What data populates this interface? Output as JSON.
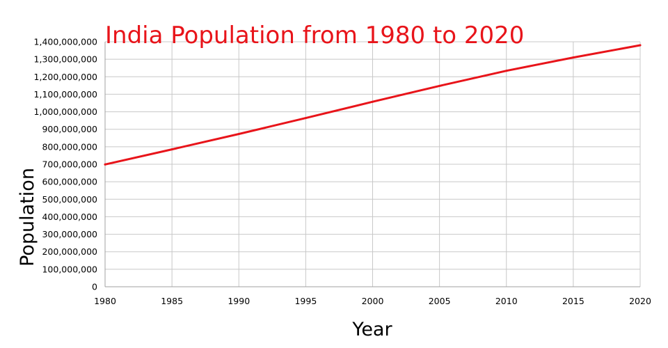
{
  "chart_data": {
    "type": "line",
    "title": "India Population from 1980 to 2020",
    "xlabel": "Year",
    "ylabel": "Population",
    "xlim": [
      1980,
      2020
    ],
    "ylim": [
      0,
      1400000000
    ],
    "x_ticks": [
      "1980",
      "1985",
      "1990",
      "1995",
      "2000",
      "2005",
      "2010",
      "2015",
      "2020"
    ],
    "y_ticks": [
      "0",
      "100,000,000",
      "200,000,000",
      "300,000,000",
      "400,000,000",
      "500,000,000",
      "600,000,000",
      "700,000,000",
      "800,000,000",
      "900,000,000",
      "1,000,000,000",
      "1,100,000,000",
      "1,200,000,000",
      "1,300,000,000",
      "1,400,000,000"
    ],
    "grid": true,
    "legend": "none",
    "series": [
      {
        "color": "#e8141a",
        "x": [
          1980,
          1985,
          1990,
          1995,
          2000,
          2005,
          2010,
          2015,
          2020
        ],
        "values": [
          699000000,
          785000000,
          873000000,
          964000000,
          1057000000,
          1148000000,
          1234000000,
          1310000000,
          1380000000
        ]
      }
    ]
  }
}
